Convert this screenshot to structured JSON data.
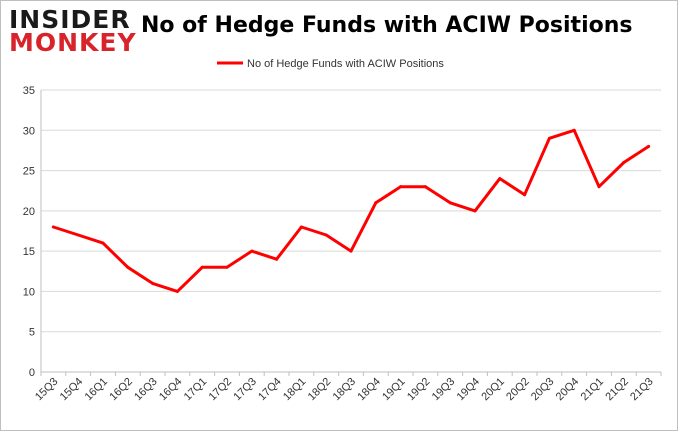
{
  "logo": {
    "top": "INSIDER",
    "bottom": "MONKEY"
  },
  "chart_data": {
    "type": "line",
    "title": "No of Hedge Funds with ACIW Positions",
    "xlabel": "",
    "ylabel": "",
    "ylim": [
      0,
      35
    ],
    "yticks": [
      0,
      5,
      10,
      15,
      20,
      25,
      30,
      35
    ],
    "grid": true,
    "legend_placement": "top-center",
    "categories": [
      "15Q3",
      "15Q4",
      "16Q1",
      "16Q2",
      "16Q3",
      "16Q4",
      "17Q1",
      "17Q2",
      "17Q3",
      "17Q4",
      "18Q1",
      "18Q2",
      "18Q3",
      "18Q4",
      "19Q1",
      "19Q2",
      "19Q3",
      "19Q4",
      "20Q1",
      "20Q2",
      "20Q3",
      "20Q4",
      "21Q1",
      "21Q2",
      "21Q3"
    ],
    "series": [
      {
        "name": "No of Hedge Funds with ACIW Positions",
        "color": "#ff0000",
        "values": [
          18,
          17,
          16,
          13,
          11,
          10,
          13,
          13,
          15,
          14,
          18,
          17,
          15,
          21,
          23,
          23,
          21,
          20,
          24,
          22,
          29,
          30,
          23,
          26,
          28
        ]
      }
    ]
  }
}
